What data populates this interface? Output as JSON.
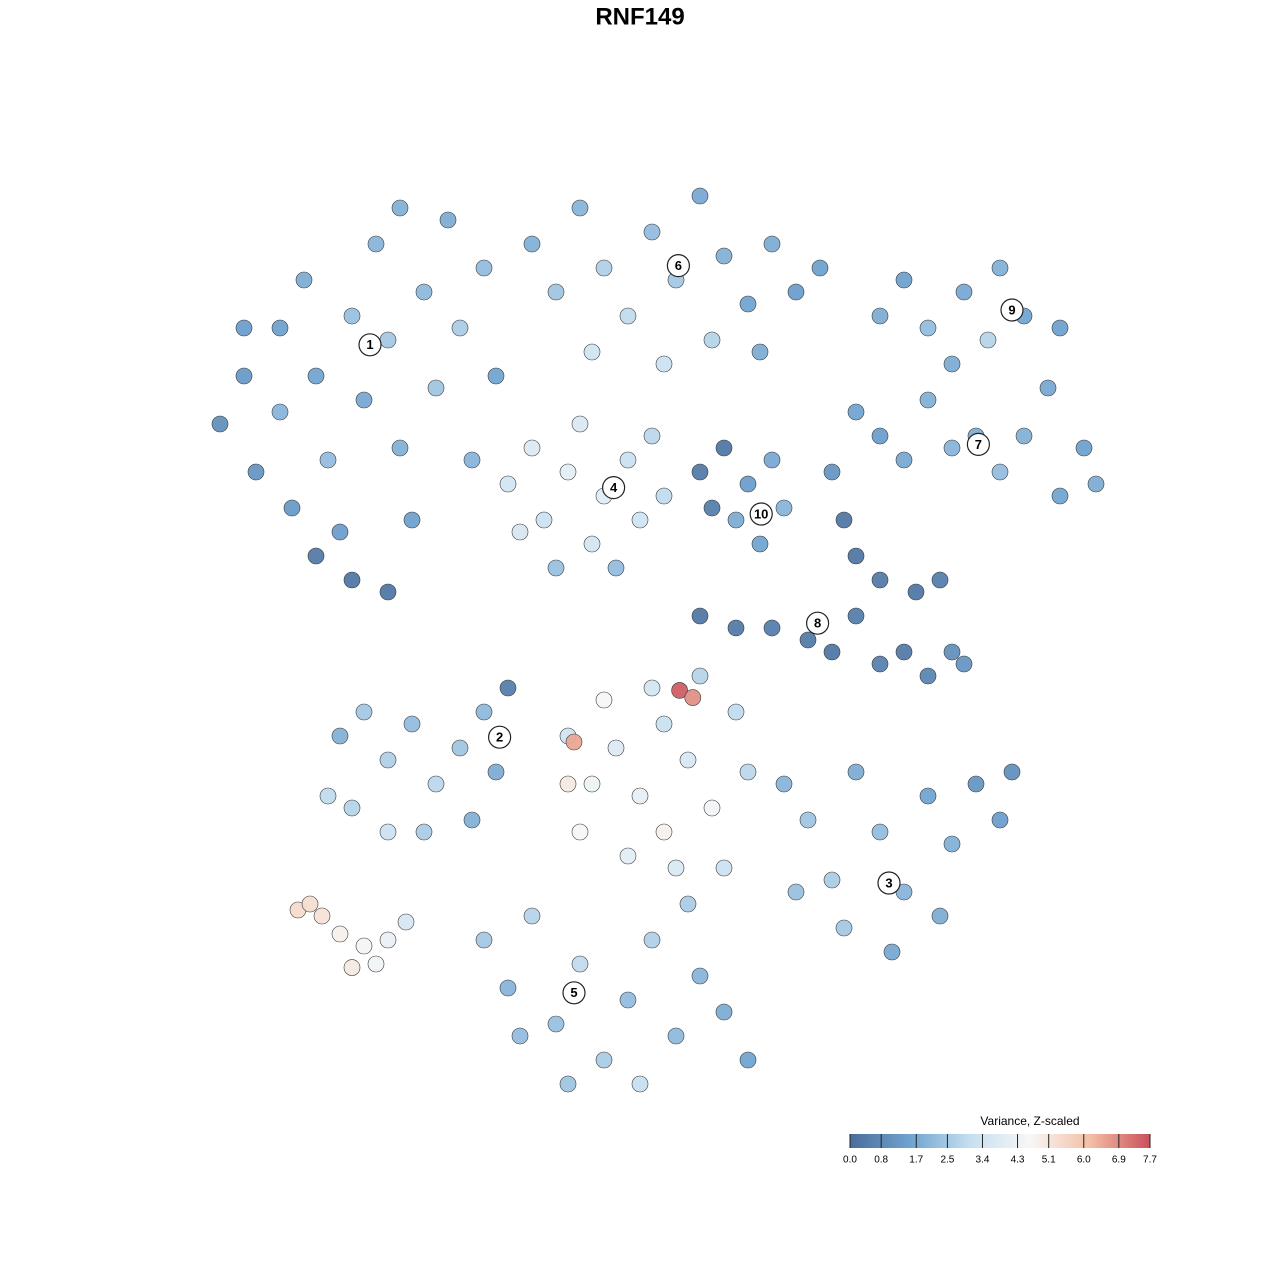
{
  "chart_data": {
    "type": "scatter",
    "title": "RNF149",
    "xlim": [
      -45,
      45
    ],
    "ylim": [
      -45,
      45
    ],
    "x": [
      -35,
      -33,
      -32,
      -30,
      -30,
      -28,
      -27,
      -26,
      -25,
      -24,
      -23,
      -22,
      -21,
      -20,
      -19,
      -18,
      -17,
      -16,
      -15,
      -14,
      -13,
      -12,
      -24,
      -21,
      -27,
      -33,
      -20,
      -29,
      -9,
      -7,
      -5,
      -3,
      -1,
      1,
      3,
      5,
      7,
      9,
      11,
      13,
      15,
      6,
      2,
      -4,
      10,
      -11,
      -9,
      -8,
      -6,
      -5,
      -4,
      -3,
      -1,
      0,
      1,
      -7,
      -2,
      2,
      -10,
      5,
      7,
      9,
      11,
      8,
      10,
      12,
      6,
      20,
      22,
      24,
      27,
      30,
      32,
      35,
      34,
      29,
      26,
      18,
      20,
      22,
      24,
      26,
      28,
      30,
      32,
      35,
      38,
      37,
      16,
      5,
      8,
      11,
      14,
      16,
      18,
      20,
      22,
      24,
      26,
      27,
      18,
      20,
      23,
      25,
      17,
      -25,
      -23,
      -21,
      -19,
      -17,
      -15,
      -13,
      -11,
      -12,
      -24,
      -21,
      -18,
      -14,
      -26,
      -6,
      -4,
      -2,
      0,
      2,
      4,
      6,
      8,
      -5,
      -1,
      3,
      7,
      -3,
      1,
      5,
      9,
      -6,
      2,
      3.3,
      4.4,
      -5.5,
      12,
      14,
      16,
      18,
      20,
      22,
      24,
      26,
      28,
      30,
      31,
      21,
      17,
      25,
      13,
      -13,
      -11,
      -9,
      -7,
      -5,
      -3,
      -1,
      1,
      3,
      5,
      7,
      9,
      0,
      -6,
      -10,
      4,
      -28.5,
      -27.5,
      -26.5,
      -25,
      -23,
      -24,
      -21,
      -22,
      -19.5
    ],
    "y": [
      18,
      22,
      14,
      26,
      19,
      30,
      22,
      15,
      9,
      27,
      20,
      33,
      25,
      16,
      10,
      29,
      21,
      35,
      26,
      15,
      31,
      22,
      5,
      4,
      7,
      26,
      36,
      11,
      33,
      29,
      36,
      31,
      27,
      34,
      30,
      37,
      32,
      28,
      33,
      29,
      31,
      25,
      23,
      24,
      24,
      13,
      16,
      10,
      14,
      18,
      8,
      12,
      15,
      10,
      17,
      6,
      6,
      12,
      9,
      14,
      16,
      13,
      15,
      10,
      8,
      11,
      11,
      27,
      30,
      26,
      29,
      31,
      27,
      26,
      21,
      25,
      23,
      19,
      17,
      15,
      20,
      16,
      17,
      14,
      17,
      12,
      13,
      16,
      14,
      2,
      1,
      1,
      0,
      -1,
      2,
      -2,
      -1,
      -3,
      -1,
      -2,
      7,
      5,
      4,
      5,
      10,
      -8,
      -6,
      -10,
      -7,
      -12,
      -9,
      -6,
      -4,
      -11,
      -14,
      -16,
      -16,
      -15,
      -13,
      -8,
      -12,
      -9,
      -13,
      -7,
      -10,
      -14,
      -6,
      -16,
      -18,
      -19,
      -19,
      -5,
      -4,
      -3,
      -11,
      -12,
      -16,
      -4.2,
      -4.8,
      -8.5,
      -12,
      -15,
      -20,
      -11,
      -16,
      -21,
      -13,
      -17,
      -12,
      -15,
      -11,
      -26,
      -24,
      -23,
      -21,
      -25,
      -29,
      -23,
      -32,
      -27,
      -35,
      -30,
      -25,
      -33,
      -28,
      -31,
      -35,
      -37,
      -37,
      -33,
      -22,
      -22.5,
      -22,
      -23,
      -24.5,
      -25.5,
      -27.3,
      -25,
      -27,
      -23.5
    ],
    "values": [
      1.0,
      1.3,
      1.2,
      1.5,
      2.0,
      1.8,
      1.6,
      2.2,
      1.4,
      2.3,
      1.7,
      2.0,
      2.5,
      1.9,
      1.5,
      2.1,
      2.4,
      1.8,
      2.6,
      2.0,
      2.2,
      1.6,
      0.3,
      0.3,
      0.4,
      1.4,
      1.9,
      1.3,
      1.9,
      2.4,
      2.0,
      2.7,
      3.0,
      2.2,
      2.5,
      1.7,
      1.9,
      1.6,
      1.8,
      1.4,
      1.5,
      2.8,
      3.3,
      3.4,
      1.8,
      3.5,
      3.8,
      3.3,
      4.0,
      3.7,
      3.5,
      3.9,
      3.2,
      3.4,
      2.9,
      2.3,
      2.2,
      3.0,
      3.6,
      0.4,
      0.3,
      1.4,
      1.7,
      1.8,
      1.6,
      2.0,
      0.5,
      1.8,
      1.5,
      2.2,
      1.7,
      1.9,
      1.6,
      1.5,
      1.7,
      2.8,
      1.8,
      1.6,
      1.4,
      1.7,
      1.9,
      2.0,
      1.8,
      2.2,
      1.9,
      1.6,
      1.8,
      1.5,
      1.2,
      0.3,
      0.4,
      0.5,
      0.4,
      0.3,
      0.5,
      0.6,
      0.4,
      0.7,
      1.0,
      1.2,
      0.3,
      0.4,
      0.3,
      0.5,
      0.3,
      1.9,
      2.5,
      2.7,
      2.2,
      2.9,
      2.4,
      2.1,
      0.5,
      1.8,
      2.8,
      3.3,
      2.6,
      1.9,
      3.0,
      3.4,
      4.3,
      3.8,
      4.1,
      3.2,
      3.6,
      4.4,
      3.0,
      4.6,
      4.0,
      3.7,
      3.3,
      4.6,
      3.5,
      2.8,
      2.9,
      5.0,
      4.8,
      7.5,
      6.8,
      6.5,
      2.0,
      2.4,
      2.6,
      1.8,
      2.2,
      2.0,
      1.6,
      1.9,
      1.2,
      1.4,
      1.0,
      1.7,
      2.5,
      1.8,
      2.3,
      2.5,
      2.0,
      2.8,
      2.3,
      3.0,
      2.6,
      2.2,
      2.7,
      2.1,
      2.0,
      1.8,
      1.6,
      3.1,
      2.4,
      2.2,
      2.6,
      5.4,
      5.3,
      5.2,
      4.8,
      4.5,
      5.0,
      4.2,
      4.4,
      3.6
    ],
    "cluster_labels": [
      {
        "label": "1",
        "x": -22.5,
        "y": 24.6
      },
      {
        "label": "2",
        "x": -11.7,
        "y": -8.1
      },
      {
        "label": "3",
        "x": 20.75,
        "y": -20.25
      },
      {
        "label": "4",
        "x": -2.2,
        "y": 12.7
      },
      {
        "label": "5",
        "x": -5.5,
        "y": -29.4
      },
      {
        "label": "6",
        "x": 3.2,
        "y": 31.2
      },
      {
        "label": "7",
        "x": 28.2,
        "y": 16.3
      },
      {
        "label": "8",
        "x": 14.8,
        "y": 1.4
      },
      {
        "label": "9",
        "x": 31,
        "y": 27.5
      },
      {
        "label": "10",
        "x": 10.1,
        "y": 10.5
      }
    ],
    "colorbar": {
      "title": "Variance, Z-scaled",
      "clim": [
        0,
        7.7
      ],
      "colors": [
        "#4a6d9a",
        "#6fa3d0",
        "#c6dff0",
        "#f7f7f7",
        "#f4bfa4",
        "#c9505c"
      ],
      "ticks": [
        {
          "value": 0,
          "label": "0.0"
        },
        0.8,
        1.7,
        2.5,
        3.4,
        4.3,
        5.1,
        {
          "value": 6,
          "label": "6.0"
        },
        6.9,
        7.7
      ]
    }
  }
}
